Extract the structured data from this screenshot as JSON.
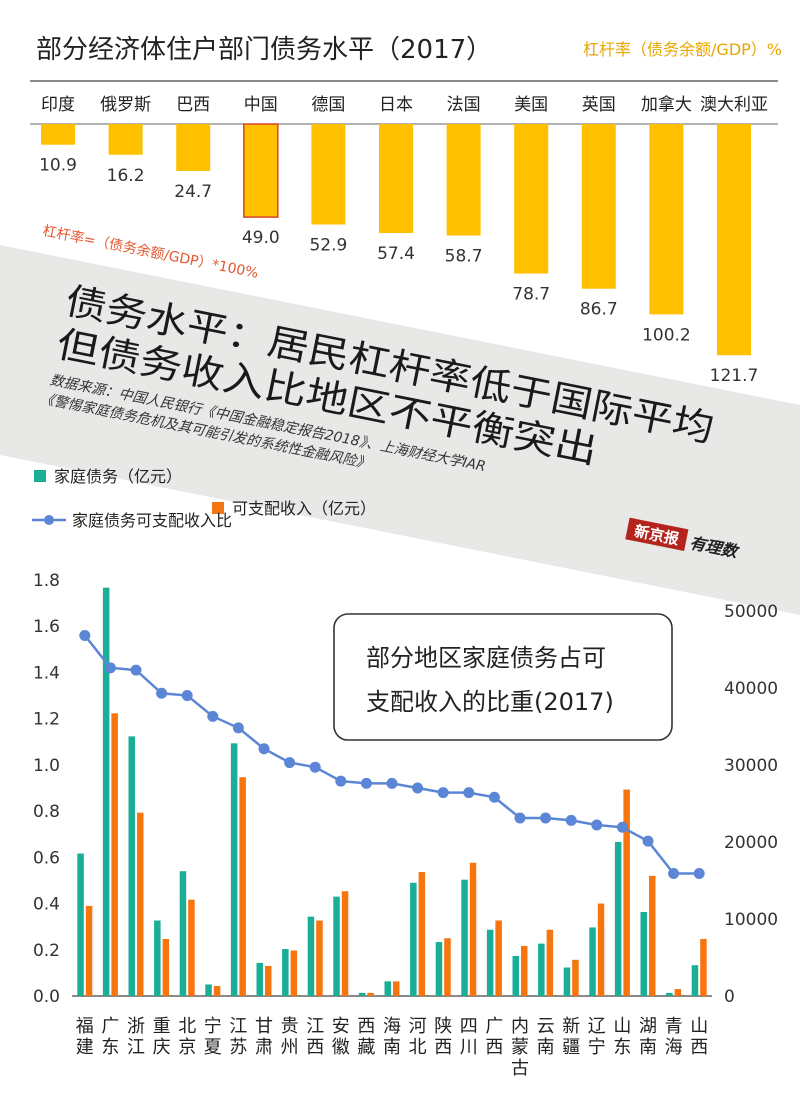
{
  "header": {
    "title": "部分经济体住户部门债务水平（2017）",
    "unit_note": "杠杆率（债务余额/GDP）%",
    "formula": "杠杆率=（债务余额/GDP）*100%"
  },
  "banner": {
    "headline_line1": "债务水平：居民杠杆率低于国际平均",
    "headline_line2": "但债务收入比地区不平衡突出",
    "source_line1": "数据来源：中国人民银行《中国金融稳定报告2018》、上海财经大学IAR",
    "source_line2": "《警惕家庭债务危机及其可能引发的系统性金融风险》"
  },
  "brand": {
    "logo": "新京报",
    "sub": "有理数"
  },
  "colors": {
    "gold": "#FFC000",
    "highlight_border": "#D9432A",
    "teal": "#1AAE97",
    "orange": "#F7750F",
    "blue_line": "#5B86D6",
    "banner_bg": "#E8E8E6",
    "formula_red": "#E4572E",
    "unit_gold": "#E8A600"
  },
  "chart_data": [
    {
      "type": "bar",
      "title": "部分经济体住户部门债务水平（2017）",
      "ylabel": "杠杆率（债务余额/GDP）%",
      "categories": [
        "印度",
        "俄罗斯",
        "巴西",
        "中国",
        "德国",
        "日本",
        "法国",
        "美国",
        "英国",
        "加拿大",
        "澳大利亚"
      ],
      "values": [
        10.9,
        16.2,
        24.7,
        49.0,
        52.9,
        57.4,
        58.7,
        78.7,
        86.7,
        100.2,
        121.7
      ],
      "value_labels": [
        "10.9",
        "16.2",
        "24.7",
        "49.0",
        "52.9",
        "57.4",
        "58.7",
        "78.7",
        "86.7",
        "100.2",
        "121.7"
      ],
      "highlight": "中国",
      "orientation": "bars hang downward from the category axis"
    },
    {
      "type": "bar",
      "title": "部分地区家庭债务占可支配收入的比重(2017)",
      "categories": [
        "福建",
        "广东",
        "浙江",
        "重庆",
        "北京",
        "宁夏",
        "江苏",
        "甘肃",
        "贵州",
        "江西",
        "安徽",
        "西藏",
        "海南",
        "河北",
        "陕西",
        "四川",
        "广西",
        "内蒙古",
        "云南",
        "新疆",
        "辽宁",
        "山东",
        "湖南",
        "青海",
        "山西"
      ],
      "series": [
        {
          "name": "家庭债务（亿元）",
          "type": "bar",
          "axis": "right",
          "values": [
            18500,
            53000,
            33700,
            9800,
            16200,
            1500,
            32800,
            4300,
            6100,
            10300,
            12900,
            400,
            1900,
            14700,
            7000,
            15100,
            8600,
            5200,
            6800,
            3700,
            8900,
            20000,
            10900,
            400,
            4000
          ]
        },
        {
          "name": "可支配收入（亿元）",
          "type": "bar",
          "axis": "right",
          "values": [
            11700,
            36700,
            23800,
            7400,
            12500,
            1300,
            28400,
            3900,
            5900,
            9800,
            13600,
            400,
            1900,
            16100,
            7500,
            17300,
            9800,
            6500,
            8600,
            4700,
            12000,
            26800,
            15600,
            900,
            7400
          ]
        },
        {
          "name": "家庭债务可支配收入比",
          "type": "line",
          "axis": "left",
          "values": [
            1.56,
            1.42,
            1.41,
            1.31,
            1.3,
            1.21,
            1.16,
            1.07,
            1.01,
            0.99,
            0.93,
            0.92,
            0.92,
            0.9,
            0.88,
            0.88,
            0.86,
            0.77,
            0.77,
            0.76,
            0.74,
            0.73,
            0.67,
            0.53,
            0.53
          ]
        }
      ],
      "yaxis_left": {
        "min": 0,
        "max": 1.8,
        "ticks": [
          "0.0",
          "0.2",
          "0.4",
          "0.6",
          "0.8",
          "1.0",
          "1.2",
          "1.4",
          "1.6",
          "1.8"
        ]
      },
      "yaxis_right": {
        "min": 0,
        "max": 54000,
        "ticks": [
          "0",
          "10000",
          "20000",
          "30000",
          "40000",
          "50000"
        ]
      },
      "legend_placement": "top-left",
      "grid": false
    }
  ]
}
